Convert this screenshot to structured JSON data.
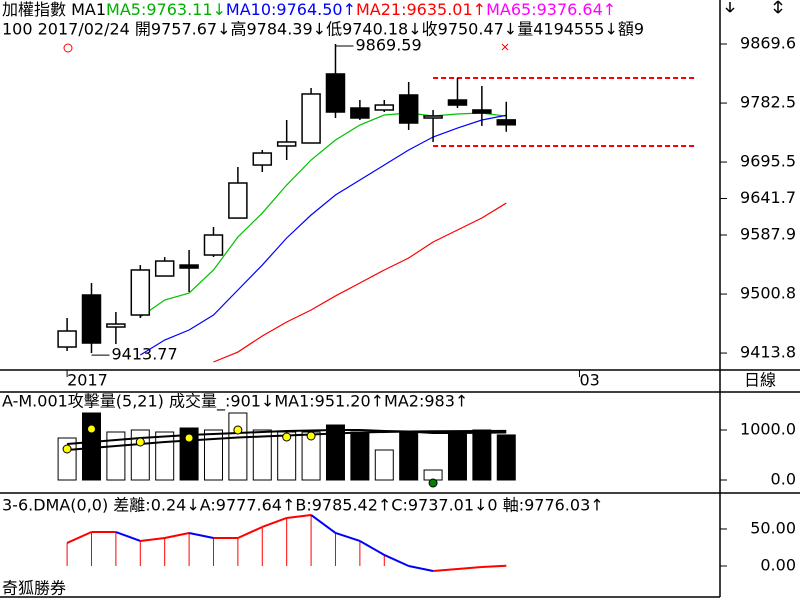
{
  "header": {
    "line1": [
      {
        "text": "加權指數 MA1",
        "color": "#000000"
      },
      {
        "text": "MA5:9763.11↓",
        "color": "#00b000"
      },
      {
        "text": "MA10:9764.50↑",
        "color": "#0000ff"
      },
      {
        "text": "MA21:9635.01↑",
        "color": "#ff0000"
      },
      {
        "text": "MA65:9376.64↑",
        "color": "#ff00ff"
      }
    ],
    "line2": "100 2017/02/24 開9757.67↓高9784.39↓低9740.18↓收9750.47↓量4194555↓額9"
  },
  "period": "日線",
  "footer": "奇狐勝券",
  "chart_data": [
    {
      "type": "candlestick",
      "x": [
        0,
        1,
        2,
        3,
        4,
        5,
        6,
        7,
        8,
        9,
        10,
        11,
        12,
        13,
        14,
        15,
        16,
        17,
        18
      ],
      "xlim": [
        -2.75,
        26.76
      ],
      "xticks": [
        {
          "value": 0,
          "label": "2017"
        },
        {
          "value": 21,
          "label": "03"
        }
      ],
      "open": [
        9422.7,
        9499.4,
        9452.2,
        9469.9,
        9527.4,
        9543.6,
        9558.4,
        9612.9,
        9691.1,
        9719.2,
        9723.6,
        9825.4,
        9775.2,
        9772.3,
        9794.4,
        9760.5,
        9787.0,
        9772.3,
        9757.67
      ],
      "high": [
        9465.5,
        9517.1,
        9474.3,
        9543.6,
        9555.4,
        9565.8,
        9599.7,
        9688.2,
        9713.3,
        9757.5,
        9804.7,
        9869.59,
        9787.0,
        9787.0,
        9813.6,
        9772.3,
        9819.5,
        9807.7,
        9784.39
      ],
      "low": [
        9416.8,
        9413.77,
        9427.1,
        9465.5,
        9527.4,
        9503.8,
        9555.4,
        9612.9,
        9680.8,
        9698.5,
        9723.6,
        9760.5,
        9757.5,
        9769.3,
        9742.8,
        9725.1,
        9775.2,
        9748.7,
        9740.18
      ],
      "close": [
        9446.3,
        9428.6,
        9456.6,
        9536.3,
        9549.5,
        9539.2,
        9587.9,
        9664.6,
        9708.8,
        9725.1,
        9795.9,
        9769.3,
        9760.5,
        9779.6,
        9753.1,
        9763.4,
        9779.6,
        9767.8,
        9750.47
      ],
      "ylim": [
        9388.8,
        9934.5
      ],
      "yticks": [
        9413.8,
        9500.8,
        9587.9,
        9641.7,
        9695.5,
        9782.5,
        9869.6
      ],
      "series": [
        {
          "name": "MA5",
          "color": "#00c000",
          "values": [
            null,
            null,
            null,
            9466.9,
            9492.0,
            9502.3,
            9536.3,
            9584.9,
            9620.3,
            9661.6,
            9698.5,
            9728.0,
            9750.1,
            9764.9,
            9767.8,
            9763.4,
            9766.4,
            9767.8,
            9763.11
          ]
        },
        {
          "name": "MA10",
          "color": "#0000ff",
          "values": [
            null,
            null,
            null,
            9410.9,
            9433.0,
            9447.8,
            9469.9,
            9506.8,
            9543.6,
            9583.5,
            9617.4,
            9646.9,
            9669.0,
            9691.1,
            9713.3,
            9732.4,
            9745.7,
            9757.5,
            9764.5
          ]
        },
        {
          "name": "MA21",
          "color": "#ff0000",
          "values": [
            null,
            null,
            null,
            null,
            null,
            null,
            9400.6,
            9415.3,
            9439.0,
            9459.6,
            9477.3,
            9498.0,
            9517.1,
            9536.3,
            9554.0,
            9577.6,
            9595.3,
            9613.0,
            9635.01
          ]
        }
      ],
      "annotations": [
        {
          "text": "9869.59",
          "x": 11,
          "y": 9869.59
        },
        {
          "text": "9413.77",
          "x": 1,
          "y": 9413.77
        }
      ],
      "reference_lines": [
        {
          "y": 9819.5,
          "x": [
            15,
            25.8
          ],
          "color": "#ff0000"
        },
        {
          "y": 9719.2,
          "x": [
            15,
            25.8
          ],
          "color": "#ff0000"
        }
      ]
    },
    {
      "type": "volume",
      "title": "A-M.001攻擊量(5,21) 成交量_:901↓MA1:951.20↑MA2:983↑",
      "values": [
        840,
        1340,
        960,
        1000,
        960,
        1040,
        1000,
        1340,
        1000,
        960,
        960,
        1100,
        960,
        600,
        960,
        200,
        960,
        1000,
        901
      ],
      "ylim": [
        -260,
        1760
      ],
      "yticks": [
        {
          "value": 0,
          "label": "0.0"
        },
        {
          "value": 1000,
          "label": "1000.0"
        }
      ],
      "series": [
        {
          "name": "MA1",
          "color": "#000000",
          "values": [
            720,
            760,
            800,
            840,
            870,
            900,
            920,
            940,
            960,
            980,
            990,
            1000,
            1000,
            980,
            970,
            940,
            940,
            945,
            951.2
          ]
        },
        {
          "name": "MA2",
          "color": "#000000",
          "values": [
            600,
            640,
            680,
            720,
            760,
            790,
            820,
            850,
            870,
            890,
            910,
            930,
            950,
            960,
            970,
            975,
            978,
            980,
            983
          ]
        }
      ],
      "points": [
        {
          "color": "#ffff00",
          "values": [
            620,
            1020,
            null,
            760,
            null,
            840,
            null,
            1000,
            null,
            860,
            880,
            null,
            null,
            null,
            null,
            null,
            null,
            null,
            null
          ]
        },
        {
          "color": "#008000",
          "values": [
            null,
            null,
            null,
            null,
            null,
            null,
            null,
            null,
            null,
            null,
            null,
            null,
            null,
            null,
            null,
            -60,
            null,
            null,
            null
          ]
        }
      ]
    },
    {
      "type": "dma",
      "title": "3-6.DMA(0,0) 差離:0.24↓A:9777.64↑B:9785.42↑C:9737.01↓0 軸:9776.03↑",
      "values": [
        31.1,
        45.9,
        45.9,
        33.8,
        37.8,
        44.6,
        37.8,
        37.8,
        52.7,
        64.9,
        68.9,
        44.6,
        33.8,
        14.9,
        0,
        -6.8,
        -4.1,
        -1.4,
        0.24
      ],
      "color_up": "#ff0000",
      "color_down": "#0000ff",
      "ylim": [
        -41.9,
        93.2
      ],
      "yticks": [
        {
          "value": 0,
          "label": "0.00"
        },
        {
          "value": 50,
          "label": "50.00"
        }
      ]
    }
  ]
}
